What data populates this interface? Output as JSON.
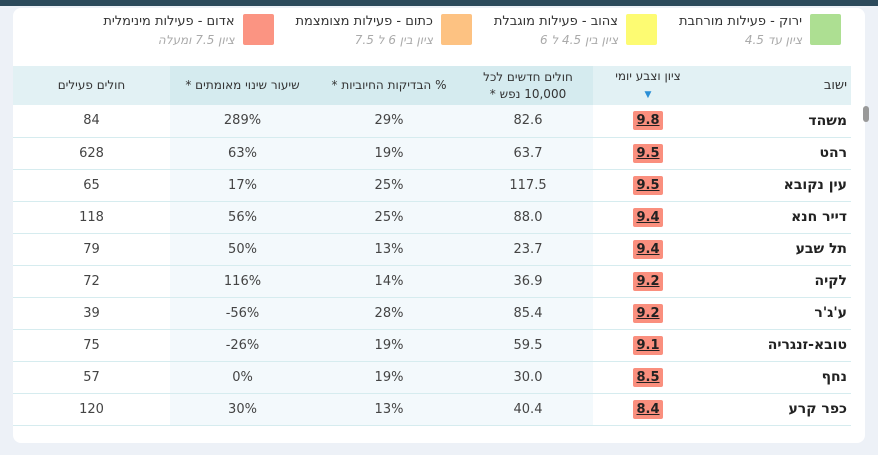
{
  "legend": [
    {
      "title": "אדום - פעילות מינימלית",
      "range": "ציון 7.5 ומעלה",
      "color": "#fb9482"
    },
    {
      "title": "כתום - פעילות מצומצמת",
      "range": "ציון בין 6 ל 7.5",
      "color": "#fdc282"
    },
    {
      "title": "צהוב - פעילות מוגבלת",
      "range": "ציון בין 4.5 ל 6",
      "color": "#fdfb72"
    },
    {
      "title": "ירוק - פעילות מורחבת",
      "range": "ציון עד 4.5",
      "color": "#addf92"
    }
  ],
  "table": {
    "headers": {
      "town": "ישוב",
      "score": "ציון וצבע יומי",
      "sort_icon": "sort-desc-triangle",
      "new_cases": "חולים חדשים לכל 10,000 נפש *",
      "positive": "% הבדיקות החיוביות *",
      "change": "שיעור שינוי מאומתים *",
      "active": "חולים פעילים"
    },
    "rows": [
      {
        "town": "משהד",
        "score": "9.8",
        "new_cases": "82.6",
        "positive": "29%",
        "change": "289%",
        "active": "84"
      },
      {
        "town": "רהט",
        "score": "9.5",
        "new_cases": "63.7",
        "positive": "19%",
        "change": "63%",
        "active": "628"
      },
      {
        "town": "עין נקובא",
        "score": "9.5",
        "new_cases": "117.5",
        "positive": "25%",
        "change": "17%",
        "active": "65"
      },
      {
        "town": "דייר חנא",
        "score": "9.4",
        "new_cases": "88.0",
        "positive": "25%",
        "change": "56%",
        "active": "118"
      },
      {
        "town": "תל שבע",
        "score": "9.4",
        "new_cases": "23.7",
        "positive": "13%",
        "change": "50%",
        "active": "79"
      },
      {
        "town": "לקיה",
        "score": "9.2",
        "new_cases": "36.9",
        "positive": "14%",
        "change": "116%",
        "active": "72"
      },
      {
        "town": "ע'ג'ר",
        "score": "9.2",
        "new_cases": "85.4",
        "positive": "28%",
        "change": "-56%",
        "active": "39"
      },
      {
        "town": "טובא-זנגריה",
        "score": "9.1",
        "new_cases": "59.5",
        "positive": "19%",
        "change": "-26%",
        "active": "75"
      },
      {
        "town": "נחף",
        "score": "8.5",
        "new_cases": "30.0",
        "positive": "19%",
        "change": "0%",
        "active": "57"
      },
      {
        "town": "כפר קרע",
        "score": "8.4",
        "new_cases": "40.4",
        "positive": "13%",
        "change": "30%",
        "active": "120"
      }
    ]
  }
}
